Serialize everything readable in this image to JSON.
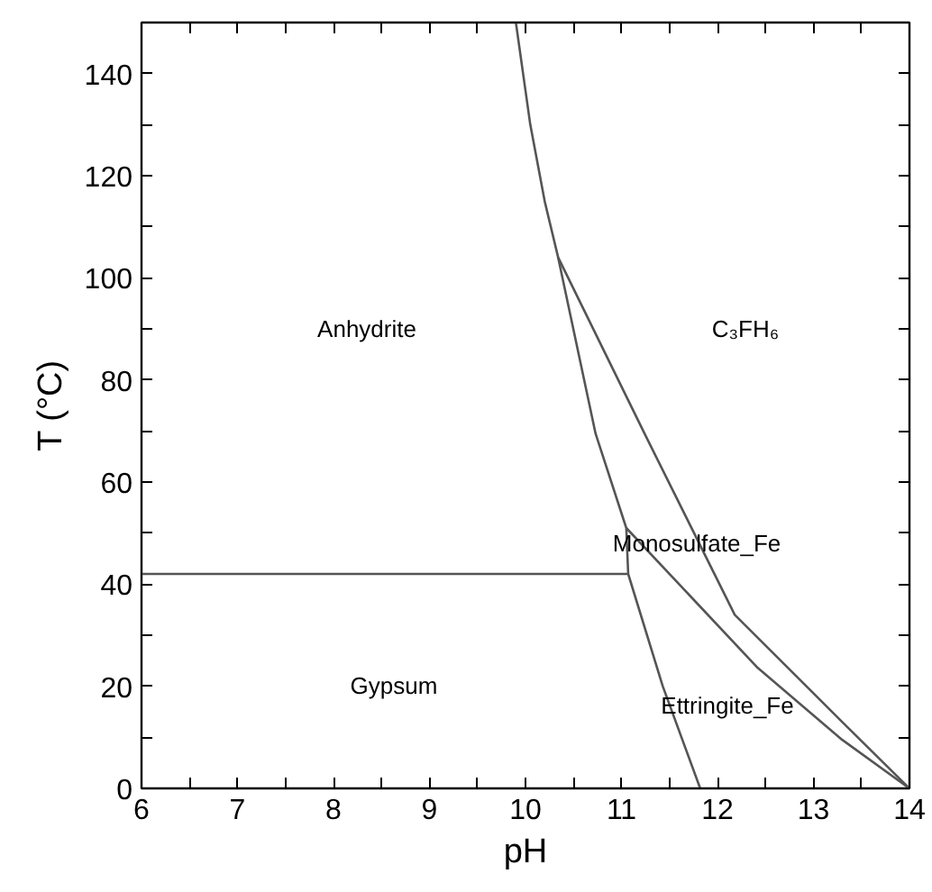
{
  "chart_data": {
    "type": "line",
    "xlabel": "pH",
    "ylabel": "T (°C)",
    "xlim": [
      6,
      14
    ],
    "ylim": [
      0,
      150
    ],
    "xticks": [
      6,
      {
        "value": 6.5,
        "label": null
      },
      7,
      {
        "value": 7.5,
        "label": null
      },
      8,
      {
        "value": 8.5,
        "label": null
      },
      9,
      {
        "value": 9.5,
        "label": null
      },
      10,
      {
        "value": 10.5,
        "label": null
      },
      11,
      {
        "value": 11.5,
        "label": null
      },
      12,
      {
        "value": 12.5,
        "label": null
      },
      13,
      {
        "value": 13.5,
        "label": null
      },
      14
    ],
    "yticks": [
      0,
      {
        "value": 10,
        "label": null
      },
      20,
      {
        "value": 30,
        "label": null
      },
      40,
      {
        "value": 50,
        "label": null
      },
      60,
      {
        "value": 70,
        "label": null
      },
      80,
      {
        "value": 90,
        "label": null
      },
      100,
      {
        "value": 110,
        "label": null
      },
      120,
      {
        "value": 130,
        "label": null
      },
      140
    ],
    "grid": false,
    "marker": "none",
    "line_style": "solid",
    "series": [
      {
        "color": "#555555",
        "x": [
          6,
          11.07
        ],
        "values": [
          42,
          42
        ]
      },
      {
        "color": "#555555",
        "x": [
          9.9,
          10.05,
          10.2,
          10.34,
          11.24,
          12.18,
          13.3,
          14
        ],
        "values": [
          150,
          130,
          115,
          104,
          69.5,
          34,
          13,
          0
        ]
      },
      {
        "color": "#555555",
        "x": [
          10.34,
          10.73,
          11.05,
          11.07,
          11.43,
          11.82
        ],
        "values": [
          104,
          69.5,
          51,
          42,
          20,
          0
        ]
      },
      {
        "color": "#555555",
        "x": [
          11.05,
          12.42,
          13.3,
          14
        ],
        "values": [
          51,
          23.6,
          9.5,
          0
        ]
      }
    ],
    "annotations": [
      "Anhydrite",
      "C₃FH₆",
      "Monosulfate_Fe",
      "Ettringite_Fe",
      "Gypsum"
    ]
  }
}
